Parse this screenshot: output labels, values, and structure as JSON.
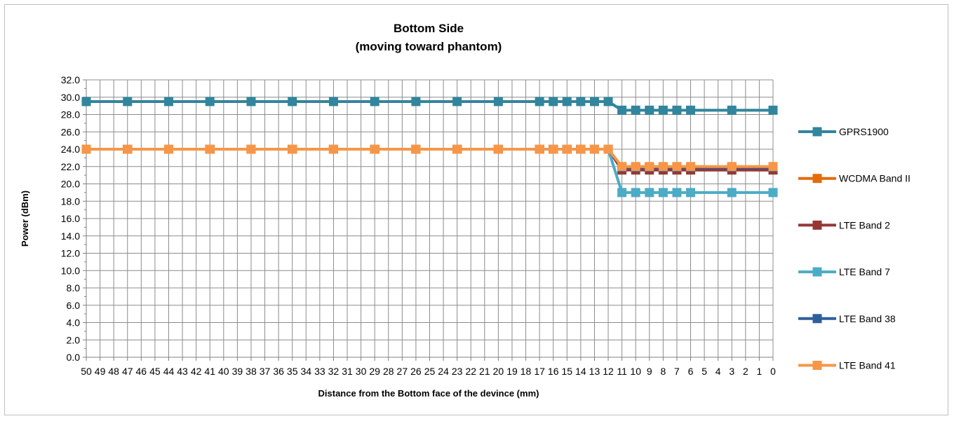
{
  "chart_data": {
    "type": "line",
    "title": "Bottom Side",
    "subtitle": "(moving toward phantom)",
    "xlabel": "Distance from the Bottom face of the devince (mm)",
    "ylabel": "Power (dBm)",
    "x": [
      50,
      49,
      48,
      47,
      46,
      45,
      44,
      43,
      42,
      41,
      40,
      39,
      38,
      37,
      36,
      35,
      34,
      33,
      32,
      31,
      30,
      29,
      28,
      27,
      26,
      25,
      24,
      23,
      22,
      21,
      20,
      19,
      18,
      17,
      16,
      15,
      14,
      13,
      12,
      11,
      10,
      9,
      8,
      7,
      6,
      5,
      4,
      3,
      2,
      1,
      0
    ],
    "ylim": [
      0,
      32
    ],
    "yticks": [
      "0.0",
      "2.0",
      "4.0",
      "6.0",
      "8.0",
      "10.0",
      "12.0",
      "14.0",
      "16.0",
      "18.0",
      "20.0",
      "22.0",
      "24.0",
      "26.0",
      "28.0",
      "30.0",
      "32.0"
    ],
    "grid": true,
    "legend_position": "right",
    "series": [
      {
        "name": "GPRS1900",
        "color": "#31859c",
        "points": [
          [
            50,
            29.5
          ],
          [
            47,
            29.5
          ],
          [
            44,
            29.5
          ],
          [
            41,
            29.5
          ],
          [
            38,
            29.5
          ],
          [
            35,
            29.5
          ],
          [
            32,
            29.5
          ],
          [
            29,
            29.5
          ],
          [
            26,
            29.5
          ],
          [
            23,
            29.5
          ],
          [
            20,
            29.5
          ],
          [
            17,
            29.5
          ],
          [
            16,
            29.5
          ],
          [
            15,
            29.5
          ],
          [
            14,
            29.5
          ],
          [
            13,
            29.5
          ],
          [
            12,
            29.5
          ],
          [
            11,
            28.5
          ],
          [
            10,
            28.5
          ],
          [
            9,
            28.5
          ],
          [
            8,
            28.5
          ],
          [
            7,
            28.5
          ],
          [
            6,
            28.5
          ],
          [
            3,
            28.5
          ],
          [
            0,
            28.5
          ]
        ]
      },
      {
        "name": "WCDMA Band II",
        "color": "#e46c0a",
        "points": [
          [
            50,
            24
          ],
          [
            47,
            24
          ],
          [
            44,
            24
          ],
          [
            41,
            24
          ],
          [
            38,
            24
          ],
          [
            35,
            24
          ],
          [
            32,
            24
          ],
          [
            29,
            24
          ],
          [
            26,
            24
          ],
          [
            23,
            24
          ],
          [
            20,
            24
          ],
          [
            17,
            24
          ],
          [
            16,
            24
          ],
          [
            15,
            24
          ],
          [
            14,
            24
          ],
          [
            13,
            24
          ],
          [
            12,
            24
          ],
          [
            11,
            21.9
          ],
          [
            10,
            21.9
          ],
          [
            9,
            21.9
          ],
          [
            8,
            21.9
          ],
          [
            7,
            21.9
          ],
          [
            6,
            21.9
          ],
          [
            3,
            21.9
          ],
          [
            0,
            21.9
          ]
        ]
      },
      {
        "name": "LTE Band 2",
        "color": "#953735",
        "points": [
          [
            50,
            24
          ],
          [
            47,
            24
          ],
          [
            44,
            24
          ],
          [
            41,
            24
          ],
          [
            38,
            24
          ],
          [
            35,
            24
          ],
          [
            32,
            24
          ],
          [
            29,
            24
          ],
          [
            26,
            24
          ],
          [
            23,
            24
          ],
          [
            20,
            24
          ],
          [
            17,
            24
          ],
          [
            16,
            24
          ],
          [
            15,
            24
          ],
          [
            14,
            24
          ],
          [
            13,
            24
          ],
          [
            12,
            24
          ],
          [
            11,
            21.6
          ],
          [
            10,
            21.6
          ],
          [
            9,
            21.6
          ],
          [
            8,
            21.6
          ],
          [
            7,
            21.6
          ],
          [
            6,
            21.6
          ],
          [
            3,
            21.6
          ],
          [
            0,
            21.6
          ]
        ]
      },
      {
        "name": "LTE Band 7",
        "color": "#4bacc6",
        "points": [
          [
            50,
            24
          ],
          [
            47,
            24
          ],
          [
            44,
            24
          ],
          [
            41,
            24
          ],
          [
            38,
            24
          ],
          [
            35,
            24
          ],
          [
            32,
            24
          ],
          [
            29,
            24
          ],
          [
            26,
            24
          ],
          [
            23,
            24
          ],
          [
            20,
            24
          ],
          [
            17,
            24
          ],
          [
            16,
            24
          ],
          [
            15,
            24
          ],
          [
            14,
            24
          ],
          [
            13,
            24
          ],
          [
            12,
            24
          ],
          [
            11,
            19
          ],
          [
            10,
            19
          ],
          [
            9,
            19
          ],
          [
            8,
            19
          ],
          [
            7,
            19
          ],
          [
            6,
            19
          ],
          [
            3,
            19
          ],
          [
            0,
            19
          ]
        ]
      },
      {
        "name": "LTE Band 38",
        "color": "#2e5f9a",
        "points": [
          [
            50,
            24
          ],
          [
            47,
            24
          ],
          [
            44,
            24
          ],
          [
            41,
            24
          ],
          [
            38,
            24
          ],
          [
            35,
            24
          ],
          [
            32,
            24
          ],
          [
            29,
            24
          ],
          [
            26,
            24
          ],
          [
            23,
            24
          ],
          [
            20,
            24
          ],
          [
            17,
            24
          ],
          [
            16,
            24
          ],
          [
            15,
            24
          ],
          [
            14,
            24
          ],
          [
            13,
            24
          ],
          [
            12,
            24
          ],
          [
            11,
            21.9
          ],
          [
            10,
            21.9
          ],
          [
            9,
            21.9
          ],
          [
            8,
            21.9
          ],
          [
            7,
            21.9
          ],
          [
            6,
            21.9
          ],
          [
            3,
            21.9
          ],
          [
            0,
            21.9
          ]
        ]
      },
      {
        "name": "LTE Band 41",
        "color": "#f79646",
        "points": [
          [
            50,
            24
          ],
          [
            47,
            24
          ],
          [
            44,
            24
          ],
          [
            41,
            24
          ],
          [
            38,
            24
          ],
          [
            35,
            24
          ],
          [
            32,
            24
          ],
          [
            29,
            24
          ],
          [
            26,
            24
          ],
          [
            23,
            24
          ],
          [
            20,
            24
          ],
          [
            17,
            24
          ],
          [
            16,
            24
          ],
          [
            15,
            24
          ],
          [
            14,
            24
          ],
          [
            13,
            24
          ],
          [
            12,
            24
          ],
          [
            11,
            22
          ],
          [
            10,
            22
          ],
          [
            9,
            22
          ],
          [
            8,
            22
          ],
          [
            7,
            22
          ],
          [
            6,
            22
          ],
          [
            3,
            22
          ],
          [
            0,
            22
          ]
        ]
      }
    ]
  }
}
